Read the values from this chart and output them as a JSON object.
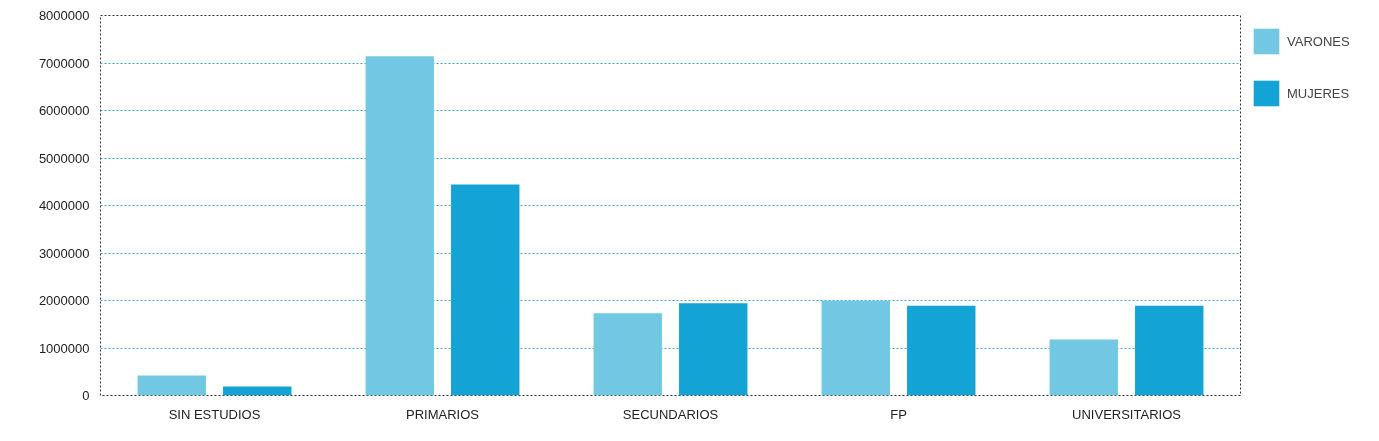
{
  "chart_data": {
    "type": "bar",
    "categories": [
      "SIN ESTUDIOS",
      "PRIMARIOS",
      "SECUNDARIOS",
      "FP",
      "UNIVERSITARIOS"
    ],
    "series": [
      {
        "name": "VARONES",
        "color": "#72c8e3",
        "values": [
          420000,
          7140000,
          1730000,
          2000000,
          1180000
        ]
      },
      {
        "name": "MUJERES",
        "color": "#13a3d4",
        "values": [
          190000,
          4440000,
          1940000,
          1890000,
          1890000
        ]
      }
    ],
    "ylim": [
      0,
      8000000
    ],
    "yticks": [
      0,
      1000000,
      2000000,
      3000000,
      4000000,
      5000000,
      6000000,
      7000000,
      8000000
    ],
    "grid": "y",
    "legend": "top right"
  }
}
